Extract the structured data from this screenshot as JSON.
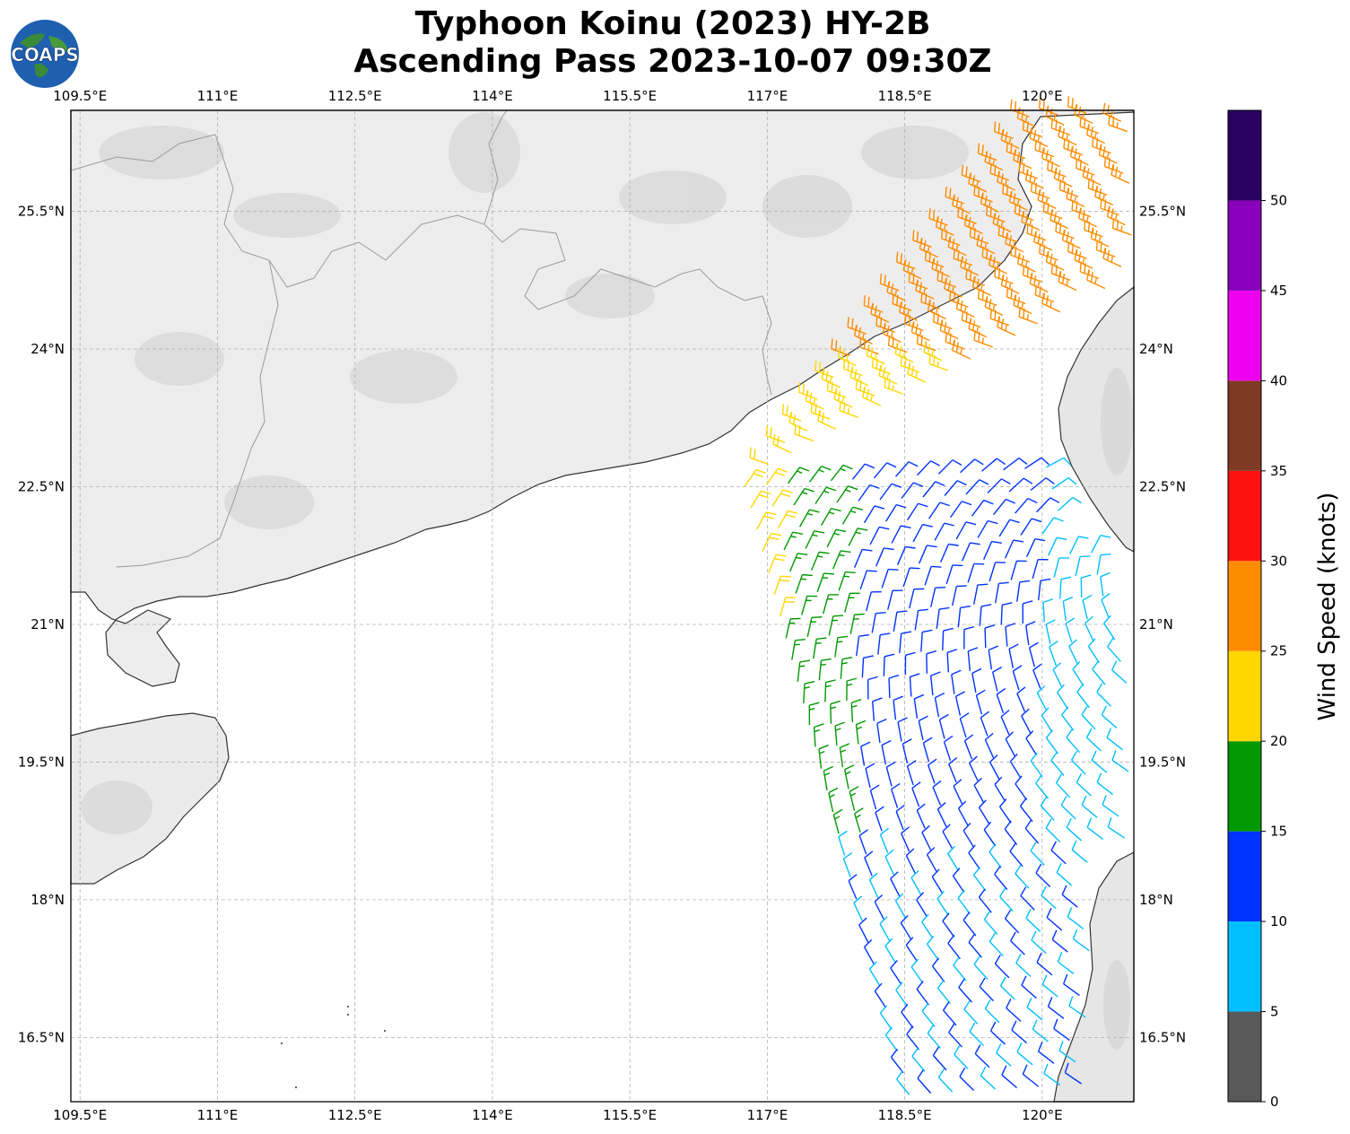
{
  "title": {
    "line1": "Typhoon Koinu (2023) HY-2B",
    "line2": "Ascending Pass 2023-10-07 09:30Z"
  },
  "logo": {
    "text": "COAPS",
    "icon": "globe-logo-icon"
  },
  "map": {
    "lon_range": [
      109.4,
      121.0
    ],
    "lat_range": [
      15.8,
      26.6
    ],
    "lon_ticks": [
      "109.5°E",
      "111°E",
      "112.5°E",
      "114°E",
      "115.5°E",
      "117°E",
      "118.5°E",
      "120°E"
    ],
    "lon_tick_values": [
      109.5,
      111,
      112.5,
      114,
      115.5,
      117,
      118.5,
      120
    ],
    "lat_ticks": [
      "16.5°N",
      "18°N",
      "19.5°N",
      "21°N",
      "22.5°N",
      "24°N",
      "25.5°N"
    ],
    "lat_tick_values": [
      16.5,
      18,
      19.5,
      21,
      22.5,
      24,
      25.5
    ],
    "gridlines": true,
    "colors": {
      "land": "#f2f2f2",
      "ocean": "#ffffff",
      "coast": "#222222",
      "grid": "#b0b0b0"
    }
  },
  "colorbar": {
    "label": "Wind Speed (knots)",
    "ticks": [
      "0",
      "5",
      "10",
      "15",
      "20",
      "25",
      "30",
      "35",
      "40",
      "45",
      "50"
    ],
    "bins": [
      {
        "range": [
          0,
          5
        ],
        "color": "#595959"
      },
      {
        "range": [
          5,
          10
        ],
        "color": "#00bfff"
      },
      {
        "range": [
          10,
          15
        ],
        "color": "#0033ff"
      },
      {
        "range": [
          15,
          20
        ],
        "color": "#009900"
      },
      {
        "range": [
          20,
          25
        ],
        "color": "#ffd700"
      },
      {
        "range": [
          25,
          30
        ],
        "color": "#ff8c00"
      },
      {
        "range": [
          30,
          35
        ],
        "color": "#ff1111"
      },
      {
        "range": [
          35,
          40
        ],
        "color": "#7f3a24"
      },
      {
        "range": [
          40,
          45
        ],
        "color": "#ee00ee"
      },
      {
        "range": [
          45,
          50
        ],
        "color": "#8800bb"
      },
      {
        "range": [
          50,
          55
        ],
        "color": "#2a0060"
      }
    ]
  }
}
